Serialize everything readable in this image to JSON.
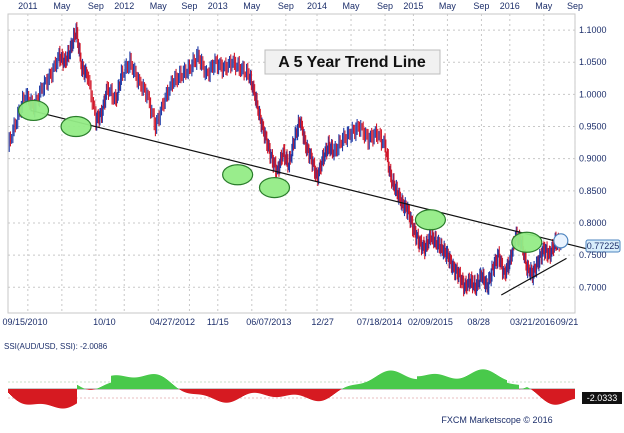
{
  "chart_data": {
    "type": "line",
    "instrument": "AUD/USD",
    "title": "A 5 Year Trend Line",
    "top_axis_labels": [
      {
        "label": "2011",
        "t": 0.035
      },
      {
        "label": "May",
        "t": 0.095
      },
      {
        "label": "Sep",
        "t": 0.155
      },
      {
        "label": "2012",
        "t": 0.205
      },
      {
        "label": "May",
        "t": 0.265
      },
      {
        "label": "Sep",
        "t": 0.32
      },
      {
        "label": "2013",
        "t": 0.37
      },
      {
        "label": "May",
        "t": 0.43
      },
      {
        "label": "Sep",
        "t": 0.49
      },
      {
        "label": "2014",
        "t": 0.545
      },
      {
        "label": "May",
        "t": 0.605
      },
      {
        "label": "Sep",
        "t": 0.665
      },
      {
        "label": "2015",
        "t": 0.715
      },
      {
        "label": "May",
        "t": 0.775
      },
      {
        "label": "Sep",
        "t": 0.835
      },
      {
        "label": "2016",
        "t": 0.885
      },
      {
        "label": "May",
        "t": 0.945
      },
      {
        "label": "Sep",
        "t": 1.0
      }
    ],
    "bottom_axis_labels": [
      {
        "label": "09/15/2010",
        "t": 0.03
      },
      {
        "label": "10/10",
        "t": 0.17
      },
      {
        "label": "04/27/2012",
        "t": 0.29
      },
      {
        "label": "11/15",
        "t": 0.37
      },
      {
        "label": "06/07/2013",
        "t": 0.46
      },
      {
        "label": "12/27",
        "t": 0.555
      },
      {
        "label": "07/18/2014",
        "t": 0.655
      },
      {
        "label": "02/09/2015",
        "t": 0.745
      },
      {
        "label": "08/28",
        "t": 0.83
      },
      {
        "label": "03/21/2016",
        "t": 0.925
      },
      {
        "label": "09/21",
        "t": 1.02
      }
    ],
    "y_ticks": [
      0.7,
      0.75,
      0.8,
      0.85,
      0.9,
      0.95,
      1.0,
      1.05,
      1.1
    ],
    "y_tick_labels": [
      "0.7000",
      "0.7500",
      "0.8000",
      "0.8500",
      "0.9000",
      "0.9500",
      "1.0000",
      "1.0500",
      "1.1000"
    ],
    "ylim": [
      0.66,
      1.125
    ],
    "price_path": [
      [
        0.0,
        0.92
      ],
      [
        0.015,
        0.96
      ],
      [
        0.03,
        1.0
      ],
      [
        0.045,
        0.98
      ],
      [
        0.06,
        1.01
      ],
      [
        0.075,
        1.03
      ],
      [
        0.09,
        1.06
      ],
      [
        0.1,
        1.05
      ],
      [
        0.11,
        1.07
      ],
      [
        0.12,
        1.1
      ],
      [
        0.13,
        1.04
      ],
      [
        0.14,
        1.03
      ],
      [
        0.155,
        0.96
      ],
      [
        0.165,
        0.97
      ],
      [
        0.175,
        1.01
      ],
      [
        0.19,
        0.99
      ],
      [
        0.2,
        1.03
      ],
      [
        0.215,
        1.05
      ],
      [
        0.23,
        1.02
      ],
      [
        0.245,
        1.0
      ],
      [
        0.26,
        0.95
      ],
      [
        0.275,
        0.99
      ],
      [
        0.29,
        1.02
      ],
      [
        0.305,
        1.03
      ],
      [
        0.32,
        1.04
      ],
      [
        0.335,
        1.06
      ],
      [
        0.35,
        1.03
      ],
      [
        0.365,
        1.05
      ],
      [
        0.38,
        1.04
      ],
      [
        0.395,
        1.05
      ],
      [
        0.41,
        1.04
      ],
      [
        0.425,
        1.03
      ],
      [
        0.435,
        1.0
      ],
      [
        0.445,
        0.96
      ],
      [
        0.455,
        0.93
      ],
      [
        0.465,
        0.9
      ],
      [
        0.475,
        0.88
      ],
      [
        0.485,
        0.91
      ],
      [
        0.495,
        0.89
      ],
      [
        0.505,
        0.93
      ],
      [
        0.515,
        0.96
      ],
      [
        0.525,
        0.92
      ],
      [
        0.535,
        0.9
      ],
      [
        0.545,
        0.87
      ],
      [
        0.555,
        0.9
      ],
      [
        0.565,
        0.92
      ],
      [
        0.575,
        0.91
      ],
      [
        0.59,
        0.93
      ],
      [
        0.605,
        0.94
      ],
      [
        0.62,
        0.95
      ],
      [
        0.635,
        0.93
      ],
      [
        0.65,
        0.94
      ],
      [
        0.665,
        0.92
      ],
      [
        0.675,
        0.87
      ],
      [
        0.685,
        0.85
      ],
      [
        0.695,
        0.83
      ],
      [
        0.705,
        0.82
      ],
      [
        0.715,
        0.79
      ],
      [
        0.725,
        0.77
      ],
      [
        0.735,
        0.76
      ],
      [
        0.745,
        0.78
      ],
      [
        0.755,
        0.77
      ],
      [
        0.765,
        0.76
      ],
      [
        0.775,
        0.75
      ],
      [
        0.785,
        0.73
      ],
      [
        0.795,
        0.72
      ],
      [
        0.805,
        0.7
      ],
      [
        0.815,
        0.71
      ],
      [
        0.825,
        0.7
      ],
      [
        0.835,
        0.72
      ],
      [
        0.845,
        0.7
      ],
      [
        0.855,
        0.73
      ],
      [
        0.865,
        0.75
      ],
      [
        0.875,
        0.72
      ],
      [
        0.885,
        0.74
      ],
      [
        0.895,
        0.78
      ],
      [
        0.905,
        0.77
      ],
      [
        0.915,
        0.73
      ],
      [
        0.925,
        0.72
      ],
      [
        0.935,
        0.74
      ],
      [
        0.945,
        0.76
      ],
      [
        0.955,
        0.75
      ],
      [
        0.965,
        0.77
      ],
      [
        0.975,
        0.77
      ]
    ],
    "trend_line": {
      "start": [
        0.04,
        0.975
      ],
      "end": [
        1.02,
        0.76
      ]
    },
    "support_line": {
      "start": [
        0.87,
        0.688
      ],
      "end": [
        0.985,
        0.745
      ]
    },
    "touch_points": [
      [
        0.045,
        0.975
      ],
      [
        0.12,
        0.95
      ],
      [
        0.405,
        0.875
      ],
      [
        0.47,
        0.855
      ],
      [
        0.745,
        0.805
      ],
      [
        0.915,
        0.77
      ]
    ],
    "current_price": 0.77225,
    "current_price_label": "0.77225",
    "ssi_label": "SSI(AUD/USD, SSI): -2.0086",
    "ssi_value": -2.0086,
    "ssi_badge": "-2.0333",
    "footer": "FXCM Marketscope © 2016",
    "colors": {
      "candle_up": "#1f3aa6",
      "candle_down": "#d1172a",
      "trend_line": "#111111",
      "touch_fill": "#94ec86",
      "touch_stroke": "#2a7d2b",
      "ssi_positive": "#49c94b",
      "ssi_negative": "#d61a21",
      "axis_text": "#1d2f6b",
      "grid": "#c8c8c8",
      "price_tag_fill": "#d9eefb",
      "price_tag_border": "#4d84bf",
      "title_box_fill": "#f1f1f1"
    }
  }
}
